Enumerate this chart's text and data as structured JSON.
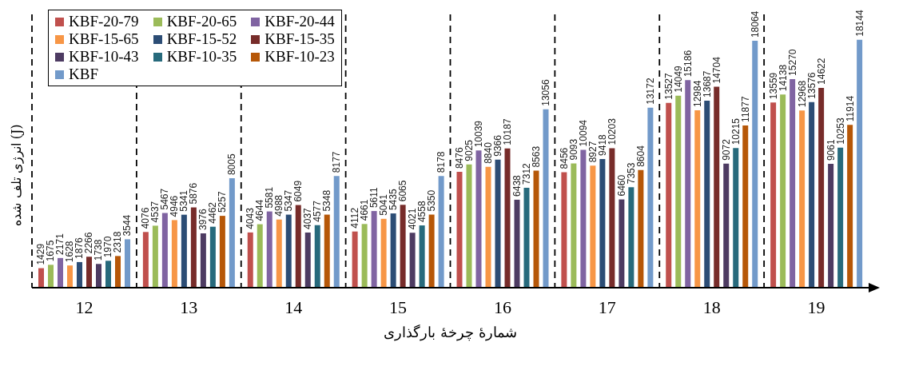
{
  "chart_data": {
    "type": "bar",
    "xlabel": "شمارهٔ چرخهٔ بارگذاری",
    "ylabel": "انرژی تلف شده (J)",
    "categories": [
      "12",
      "13",
      "14",
      "15",
      "16",
      "17",
      "18",
      "19"
    ],
    "series": [
      {
        "name": "KBF-20-79",
        "color": "#c0504d",
        "values": [
          1429,
          4076,
          4043,
          4112,
          8476,
          8456,
          13527,
          13559
        ]
      },
      {
        "name": "KBF-20-65",
        "color": "#9bbb59",
        "values": [
          1675,
          4537,
          4644,
          4661,
          9025,
          9093,
          14049,
          14138
        ]
      },
      {
        "name": "KBF-20-44",
        "color": "#8064a2",
        "values": [
          2171,
          5467,
          5581,
          5611,
          10039,
          10094,
          15186,
          15270
        ]
      },
      {
        "name": "KBF-15-65",
        "color": "#f79646",
        "values": [
          1628,
          4946,
          4988,
          5041,
          8840,
          8927,
          12984,
          12968
        ]
      },
      {
        "name": "KBF-15-52",
        "color": "#2c4d75",
        "values": [
          1876,
          5341,
          5347,
          5435,
          9366,
          9418,
          13687,
          13576
        ]
      },
      {
        "name": "KBF-15-35",
        "color": "#772c2a",
        "values": [
          2266,
          5876,
          6049,
          6065,
          10187,
          10203,
          14704,
          14622
        ]
      },
      {
        "name": "KBF-10-43",
        "color": "#4d3b62",
        "values": [
          1738,
          3976,
          4037,
          4021,
          6438,
          6460,
          9072,
          9061
        ]
      },
      {
        "name": "KBF-10-35",
        "color": "#276a7c",
        "values": [
          1970,
          4462,
          4577,
          4558,
          7312,
          7353,
          10215,
          10253
        ]
      },
      {
        "name": "KBF-10-23",
        "color": "#b65708",
        "values": [
          2318,
          5257,
          5348,
          5350,
          8563,
          8604,
          11877,
          11914
        ]
      },
      {
        "name": "KBF",
        "color": "#729aca",
        "values": [
          3544,
          8005,
          8177,
          8178,
          13056,
          13172,
          18064,
          18144
        ]
      }
    ],
    "data_labels": true,
    "grid": "x",
    "legend": "top left",
    "tick_labels": "x"
  }
}
